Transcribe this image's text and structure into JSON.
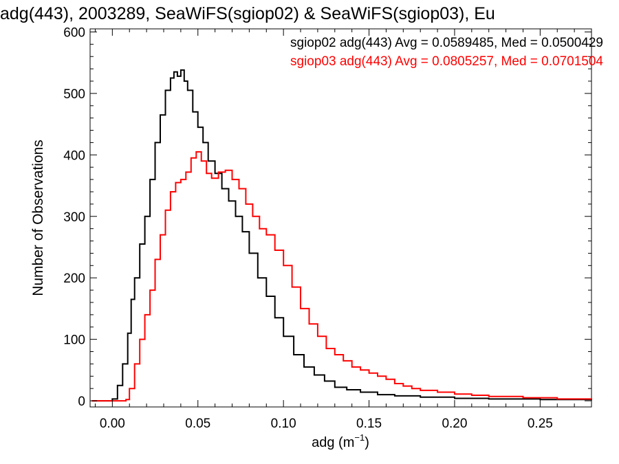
{
  "chart_data": {
    "type": "step",
    "title": "adg(443), 2003289, SeaWiFS(sgiop02) & SeaWiFS(sgiop03), Eu",
    "xlabel_main": "adg (m",
    "xlabel_sup": "−1",
    "xlabel_close": ")",
    "ylabel": "Number of Observations",
    "xlim": [
      -0.013,
      0.28
    ],
    "ylim": [
      -10,
      605
    ],
    "xticks": [
      0.0,
      0.05,
      0.1,
      0.15,
      0.2,
      0.25
    ],
    "xtick_labels": [
      "0.00",
      "0.05",
      "0.10",
      "0.15",
      "0.20",
      "0.25"
    ],
    "yticks": [
      0,
      100,
      200,
      300,
      400,
      500,
      600
    ],
    "ytick_labels": [
      "0",
      "100",
      "200",
      "300",
      "400",
      "500",
      "600"
    ],
    "grid": false,
    "legend_placement": "top-right",
    "series": [
      {
        "name": "sgiop02 adg(443) Avg = 0.0589485, Med = 0.0500429",
        "color": "#000000",
        "x": [
          -0.012,
          0.0,
          0.003,
          0.006,
          0.009,
          0.011,
          0.013,
          0.016,
          0.019,
          0.022,
          0.025,
          0.028,
          0.031,
          0.034,
          0.036,
          0.038,
          0.04,
          0.042,
          0.044,
          0.047,
          0.05,
          0.053,
          0.056,
          0.06,
          0.064,
          0.068,
          0.072,
          0.076,
          0.08,
          0.085,
          0.09,
          0.095,
          0.1,
          0.106,
          0.112,
          0.118,
          0.124,
          0.13,
          0.137,
          0.145,
          0.155,
          0.165,
          0.18,
          0.2,
          0.22,
          0.25,
          0.28
        ],
        "y": [
          0,
          3,
          25,
          60,
          110,
          165,
          200,
          255,
          300,
          360,
          420,
          465,
          505,
          525,
          535,
          528,
          538,
          520,
          505,
          470,
          445,
          420,
          390,
          370,
          345,
          325,
          300,
          275,
          240,
          200,
          170,
          135,
          105,
          75,
          55,
          42,
          32,
          22,
          18,
          14,
          10,
          8,
          6,
          4,
          3,
          2,
          1
        ]
      },
      {
        "name": "sgiop03 adg(443) Avg = 0.0805257, Med = 0.0701504",
        "color": "#ff0000",
        "x": [
          -0.012,
          0.008,
          0.01,
          0.013,
          0.016,
          0.019,
          0.022,
          0.025,
          0.028,
          0.031,
          0.034,
          0.037,
          0.04,
          0.043,
          0.046,
          0.049,
          0.052,
          0.055,
          0.058,
          0.062,
          0.066,
          0.07,
          0.074,
          0.078,
          0.082,
          0.086,
          0.09,
          0.095,
          0.1,
          0.105,
          0.11,
          0.115,
          0.12,
          0.125,
          0.13,
          0.135,
          0.14,
          0.145,
          0.15,
          0.155,
          0.16,
          0.165,
          0.17,
          0.175,
          0.18,
          0.19,
          0.2,
          0.21,
          0.22,
          0.24,
          0.26,
          0.28
        ],
        "y": [
          0,
          2,
          20,
          60,
          100,
          140,
          180,
          230,
          270,
          310,
          340,
          355,
          360,
          372,
          395,
          405,
          390,
          370,
          362,
          372,
          375,
          360,
          345,
          320,
          300,
          280,
          270,
          245,
          220,
          185,
          150,
          125,
          105,
          85,
          75,
          65,
          55,
          50,
          45,
          40,
          35,
          28,
          24,
          20,
          17,
          14,
          11,
          9,
          7,
          5,
          3,
          2
        ]
      }
    ]
  }
}
